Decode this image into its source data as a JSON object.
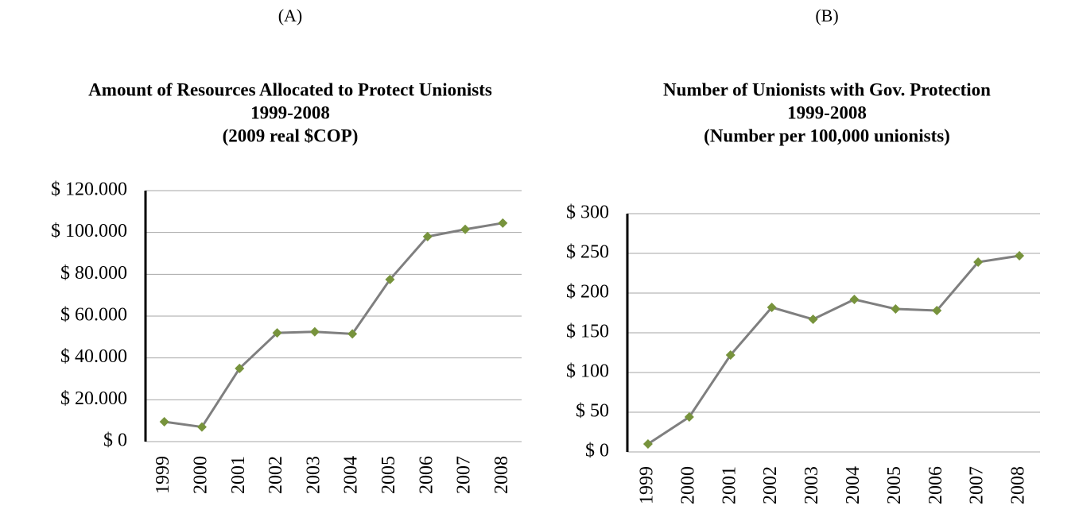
{
  "chart_data": [
    {
      "type": "line",
      "panel": "(A)",
      "title": [
        "Amount of Resources Allocated to Protect Unionists",
        "1999-2008",
        "(2009 real $COP)"
      ],
      "categories": [
        "1999",
        "2000",
        "2001",
        "2002",
        "2003",
        "2004",
        "2005",
        "2006",
        "2007",
        "2008"
      ],
      "values": [
        9500,
        7000,
        35000,
        52000,
        52500,
        51500,
        77500,
        98000,
        101500,
        104500
      ],
      "color": "#7f7f7f",
      "marker_color": "#77933c",
      "ylim": [
        0,
        120000
      ],
      "yticks": [
        {
          "value": 0,
          "label": "$ 0"
        },
        {
          "value": 20000,
          "label": "$ 20.000"
        },
        {
          "value": 40000,
          "label": "$ 40.000"
        },
        {
          "value": 60000,
          "label": "$ 60.000"
        },
        {
          "value": 80000,
          "label": "$ 80.000"
        },
        {
          "value": 100000,
          "label": "$ 100.000"
        },
        {
          "value": 120000,
          "label": "$ 120.000"
        }
      ],
      "grid": true
    },
    {
      "type": "line",
      "panel": "(B)",
      "title": [
        "Number of Unionists with Gov. Protection",
        "1999-2008",
        "(Number per 100,000 unionists)"
      ],
      "categories": [
        "1999",
        "2000",
        "2001",
        "2002",
        "2003",
        "2004",
        "2005",
        "2006",
        "2007",
        "2008"
      ],
      "values": [
        10,
        44,
        122,
        182,
        167,
        192,
        180,
        178,
        239,
        247
      ],
      "color": "#7f7f7f",
      "marker_color": "#77933c",
      "ylim": [
        0,
        300
      ],
      "yticks": [
        {
          "value": 0,
          "label": "$ 0"
        },
        {
          "value": 50,
          "label": "$ 50"
        },
        {
          "value": 100,
          "label": "$ 100"
        },
        {
          "value": 150,
          "label": "$ 150"
        },
        {
          "value": 200,
          "label": "$ 200"
        },
        {
          "value": 250,
          "label": "$ 250"
        },
        {
          "value": 300,
          "label": "$ 300"
        }
      ],
      "grid": true
    }
  ]
}
